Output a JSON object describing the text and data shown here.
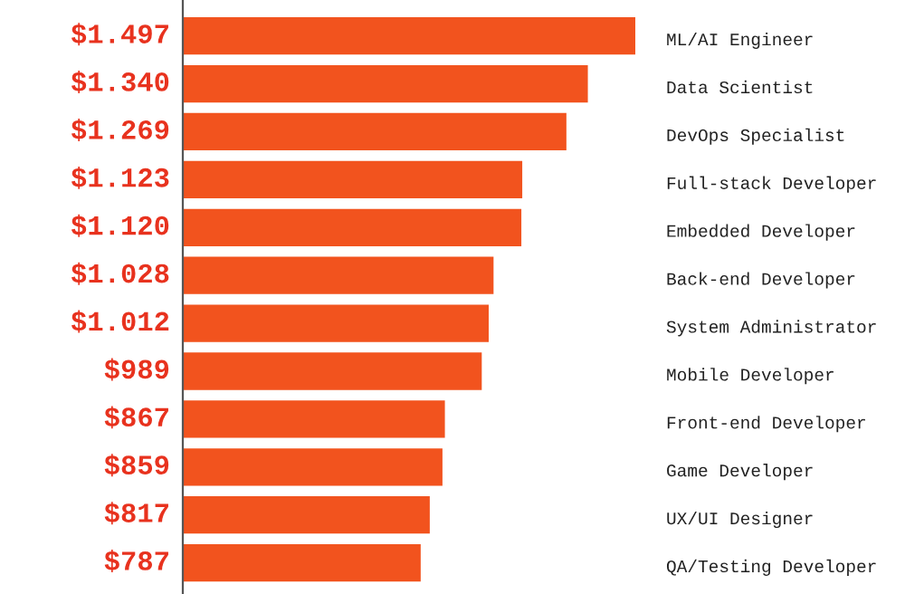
{
  "chart_data": {
    "type": "bar",
    "orientation": "horizontal",
    "categories": [
      "ML/AI Engineer",
      "Data Scientist",
      "DevOps Specialist",
      "Full-stack Developer",
      "Embedded Developer",
      "Back-end Developer",
      "System Administrator",
      "Mobile Developer",
      "Front-end Developer",
      "Game Developer",
      "UX/UI Designer",
      "QA/Testing Developer"
    ],
    "values": [
      1497,
      1340,
      1269,
      1123,
      1120,
      1028,
      1012,
      989,
      867,
      859,
      817,
      787
    ],
    "value_labels": [
      "$1.497",
      "$1.340",
      "$1.269",
      "$1.123",
      "$1.120",
      "$1.028",
      "$1.012",
      "$989",
      "$867",
      "$859",
      "$817",
      "$787"
    ],
    "color": "#f2531e"
  }
}
